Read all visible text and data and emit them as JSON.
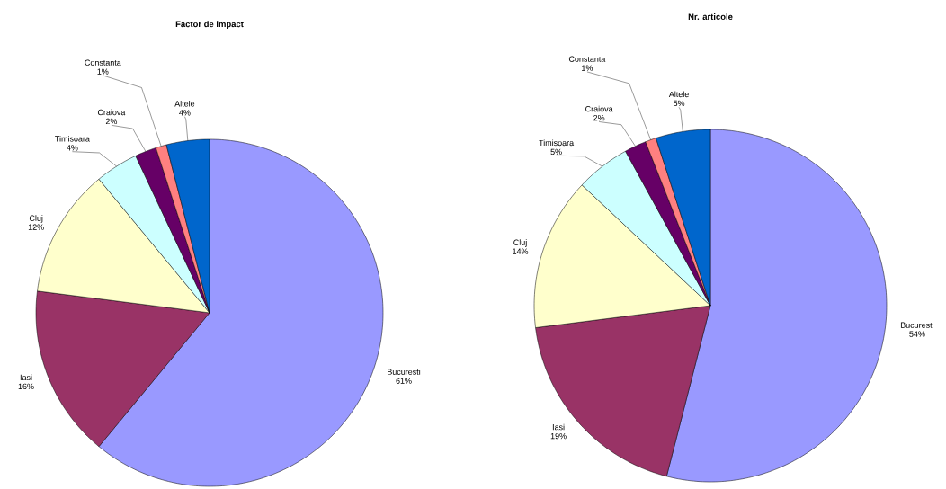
{
  "chart_data": [
    {
      "type": "pie",
      "title": "Factor de impact",
      "categories": [
        "Bucuresti",
        "Iasi",
        "Cluj",
        "Timisoara",
        "Craiova",
        "Constanta",
        "Altele"
      ],
      "values": [
        61,
        16,
        12,
        4,
        2,
        1,
        4
      ],
      "value_labels": [
        "61%",
        "16%",
        "12%",
        "4%",
        "2%",
        "1%",
        "4%"
      ],
      "colors": [
        "#9999ff",
        "#993366",
        "#ffffcc",
        "#ccffff",
        "#660066",
        "#ff8080",
        "#0066cc"
      ]
    },
    {
      "type": "pie",
      "title": "Nr. articole",
      "categories": [
        "Bucuresti",
        "Iasi",
        "Cluj",
        "Timisoara",
        "Craiova",
        "Constanta",
        "Altele"
      ],
      "values": [
        54,
        19,
        14,
        5,
        2,
        1,
        5
      ],
      "value_labels": [
        "54%",
        "19%",
        "14%",
        "5%",
        "2%",
        "1%",
        "5%"
      ],
      "colors": [
        "#9999ff",
        "#993366",
        "#ffffcc",
        "#ccffff",
        "#660066",
        "#ff8080",
        "#0066cc"
      ]
    }
  ]
}
